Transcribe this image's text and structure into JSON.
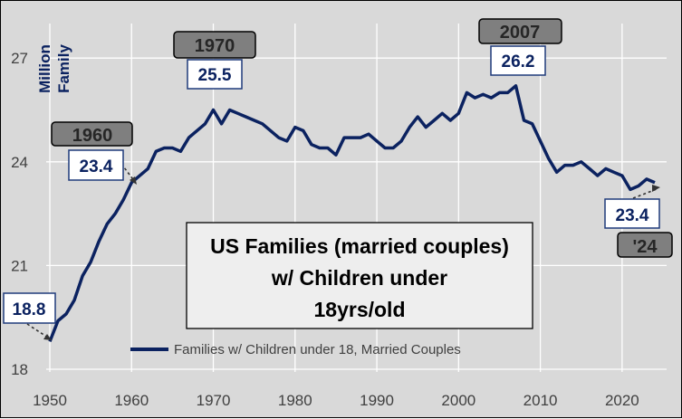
{
  "chart_data": {
    "type": "line",
    "title_lines": [
      "US Families (married couples)",
      "w/ Children under",
      "18yrs/old"
    ],
    "ylabel_lines": [
      "Million",
      "Family"
    ],
    "xlabel": "",
    "xlim": [
      1950,
      2024
    ],
    "ylim": [
      18,
      28
    ],
    "x_ticks": [
      "1950",
      "1960",
      "1970",
      "1980",
      "1990",
      "2000",
      "2010",
      "2020"
    ],
    "y_ticks": [
      "18",
      "21",
      "24",
      "27"
    ],
    "grid": true,
    "legend_position": "bottom",
    "series": [
      {
        "name": "Families w/ Children under 18, Married Couples",
        "color": "#0b2260",
        "x": [
          1950,
          1951,
          1952,
          1953,
          1954,
          1955,
          1956,
          1957,
          1958,
          1959,
          1960,
          1961,
          1962,
          1963,
          1964,
          1965,
          1966,
          1967,
          1968,
          1969,
          1970,
          1971,
          1972,
          1973,
          1974,
          1975,
          1976,
          1977,
          1978,
          1979,
          1980,
          1981,
          1982,
          1983,
          1984,
          1985,
          1986,
          1987,
          1988,
          1989,
          1990,
          1991,
          1992,
          1993,
          1994,
          1995,
          1996,
          1997,
          1998,
          1999,
          2000,
          2001,
          2002,
          2003,
          2004,
          2005,
          2006,
          2007,
          2008,
          2009,
          2010,
          2011,
          2012,
          2013,
          2014,
          2015,
          2016,
          2017,
          2018,
          2019,
          2020,
          2021,
          2022,
          2023,
          2024
        ],
        "y": [
          18.8,
          19.4,
          19.6,
          20.0,
          20.7,
          21.1,
          21.7,
          22.2,
          22.5,
          22.9,
          23.4,
          23.6,
          23.8,
          24.3,
          24.4,
          24.4,
          24.3,
          24.7,
          24.9,
          25.1,
          25.5,
          25.1,
          25.5,
          25.4,
          25.3,
          25.2,
          25.1,
          24.9,
          24.7,
          24.6,
          25.0,
          24.9,
          24.5,
          24.4,
          24.4,
          24.2,
          24.7,
          24.7,
          24.7,
          24.8,
          24.6,
          24.4,
          24.4,
          24.6,
          25.0,
          25.3,
          25.0,
          25.2,
          25.4,
          25.2,
          25.4,
          26.0,
          25.85,
          25.95,
          25.85,
          26.0,
          26.0,
          26.2,
          25.2,
          25.1,
          24.6,
          24.1,
          23.7,
          23.9,
          23.9,
          24.0,
          23.8,
          23.6,
          23.8,
          23.7,
          23.6,
          23.2,
          23.3,
          23.5,
          23.4
        ]
      }
    ],
    "annotations": [
      {
        "year_label": "1960",
        "value_label": "23.4",
        "x": 1960,
        "y": 23.4
      },
      {
        "year_label": "1970",
        "value_label": "25.5",
        "x": 1970,
        "y": 25.5
      },
      {
        "year_label": "2007",
        "value_label": "26.2",
        "x": 2007,
        "y": 26.2
      },
      {
        "value_label": "18.8",
        "x": 1950,
        "y": 18.8
      },
      {
        "year_label": "'24",
        "value_label": "23.4",
        "x": 2024,
        "y": 23.4
      }
    ]
  }
}
